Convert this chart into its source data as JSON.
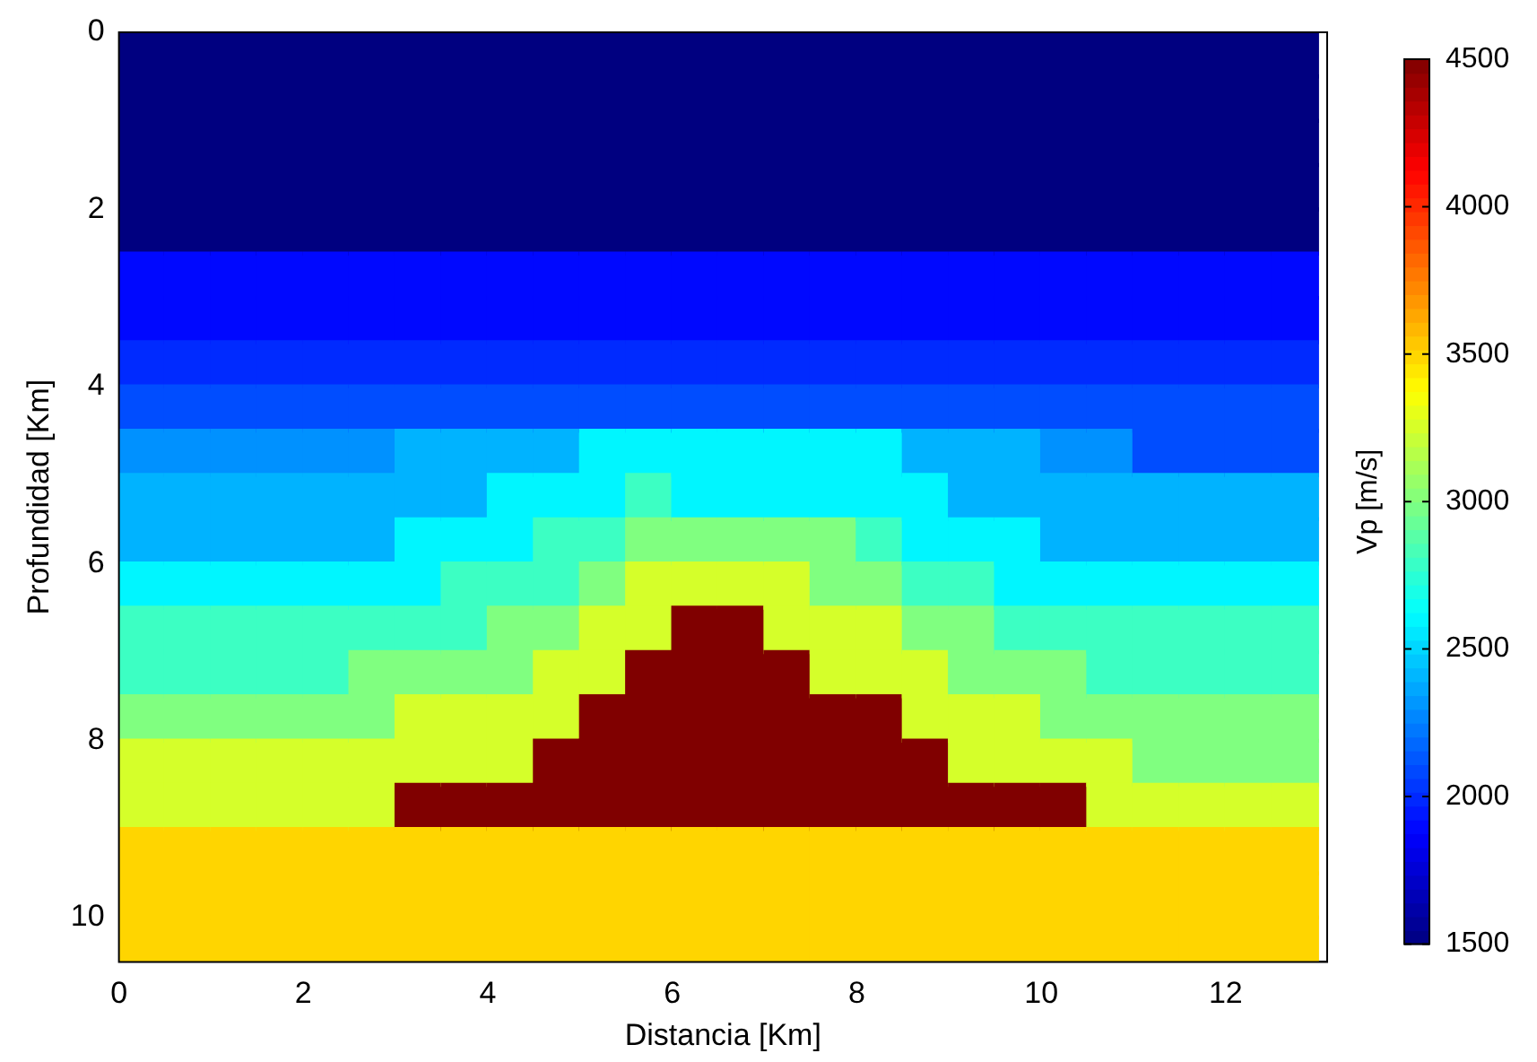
{
  "chart_data": {
    "type": "scatter",
    "xlabel": "Distancia [Km]",
    "ylabel": "Profundidad [Km]",
    "clabel": "Vp [m/s]",
    "marker": "square",
    "grid": false,
    "legend": false,
    "xlim": [
      0,
      13.1
    ],
    "xticks": [
      0,
      2,
      4,
      6,
      8,
      10,
      12
    ],
    "ylim": [
      10.5,
      0
    ],
    "yticks": [
      0,
      2,
      4,
      6,
      8,
      10
    ],
    "clim": [
      1500,
      4500
    ],
    "cticks": [
      1500,
      2000,
      2500,
      3000,
      3500,
      4000,
      4500
    ],
    "x": [
      0.25,
      0.25,
      0.25,
      0.25,
      0.25,
      0.25,
      0.25,
      0.25,
      0.25,
      0.25,
      0.25,
      0.25,
      0.25,
      0.25,
      0.25,
      0.25,
      0.25,
      0.25,
      0.25,
      0.25,
      0.25,
      0.75,
      0.75,
      0.75,
      0.75,
      0.75,
      0.75,
      0.75,
      0.75,
      0.75,
      0.75,
      0.75,
      0.75,
      0.75,
      0.75,
      0.75,
      0.75,
      0.75,
      0.75,
      0.75,
      0.75,
      0.75,
      1.25,
      1.25,
      1.25,
      1.25,
      1.25,
      1.25,
      1.25,
      1.25,
      1.25,
      1.25,
      1.25,
      1.25,
      1.25,
      1.25,
      1.25,
      1.25,
      1.25,
      1.25,
      1.25,
      1.25,
      1.25,
      1.75,
      1.75,
      1.75,
      1.75,
      1.75,
      1.75,
      1.75,
      1.75,
      1.75,
      1.75,
      1.75,
      1.75,
      1.75,
      1.75,
      1.75,
      1.75,
      1.75,
      1.75,
      1.75,
      1.75,
      1.75,
      2.25,
      2.25,
      2.25,
      2.25,
      2.25,
      2.25,
      2.25,
      2.25,
      2.25,
      2.25,
      2.25,
      2.25,
      2.25,
      2.25,
      2.25,
      2.25,
      2.25,
      2.25,
      2.25,
      2.25,
      2.25,
      2.75,
      2.75,
      2.75,
      2.75,
      2.75,
      2.75,
      2.75,
      2.75,
      2.75,
      2.75,
      2.75,
      2.75,
      2.75,
      2.75,
      2.75,
      2.75,
      2.75,
      2.75,
      2.75,
      2.75,
      2.75,
      3.25,
      3.25,
      3.25,
      3.25,
      3.25,
      3.25,
      3.25,
      3.25,
      3.25,
      3.25,
      3.25,
      3.25,
      3.25,
      3.25,
      3.25,
      3.25,
      3.25,
      3.25,
      3.25,
      3.25,
      3.25,
      3.75,
      3.75,
      3.75,
      3.75,
      3.75,
      3.75,
      3.75,
      3.75,
      3.75,
      3.75,
      3.75,
      3.75,
      3.75,
      3.75,
      3.75,
      3.75,
      3.75,
      3.75,
      3.75,
      3.75,
      3.75,
      4.25,
      4.25,
      4.25,
      4.25,
      4.25,
      4.25,
      4.25,
      4.25,
      4.25,
      4.25,
      4.25,
      4.25,
      4.25,
      4.25,
      4.25,
      4.25,
      4.25,
      4.25,
      4.25,
      4.25,
      4.25,
      4.75,
      4.75,
      4.75,
      4.75,
      4.75,
      4.75,
      4.75,
      4.75,
      4.75,
      4.75,
      4.75,
      4.75,
      4.75,
      4.75,
      4.75,
      4.75,
      4.75,
      4.75,
      4.75,
      4.75,
      4.75,
      5.25,
      5.25,
      5.25,
      5.25,
      5.25,
      5.25,
      5.25,
      5.25,
      5.25,
      5.25,
      5.25,
      5.25,
      5.25,
      5.25,
      5.25,
      5.25,
      5.25,
      5.25,
      5.25,
      5.25,
      5.25,
      5.75,
      5.75,
      5.75,
      5.75,
      5.75,
      5.75,
      5.75,
      5.75,
      5.75,
      5.75,
      5.75,
      5.75,
      5.75,
      5.75,
      5.75,
      5.75,
      5.75,
      5.75,
      5.75,
      5.75,
      5.75,
      6.25,
      6.25,
      6.25,
      6.25,
      6.25,
      6.25,
      6.25,
      6.25,
      6.25,
      6.25,
      6.25,
      6.25,
      6.25,
      6.25,
      6.25,
      6.25,
      6.25,
      6.25,
      6.25,
      6.25,
      6.25,
      6.75,
      6.75,
      6.75,
      6.75,
      6.75,
      6.75,
      6.75,
      6.75,
      6.75,
      6.75,
      6.75,
      6.75,
      6.75,
      6.75,
      6.75,
      6.75,
      6.75,
      6.75,
      6.75,
      6.75,
      6.75,
      7.25,
      7.25,
      7.25,
      7.25,
      7.25,
      7.25,
      7.25,
      7.25,
      7.25,
      7.25,
      7.25,
      7.25,
      7.25,
      7.25,
      7.25,
      7.25,
      7.25,
      7.25,
      7.25,
      7.25,
      7.25,
      7.75,
      7.75,
      7.75,
      7.75,
      7.75,
      7.75,
      7.75,
      7.75,
      7.75,
      7.75,
      7.75,
      7.75,
      7.75,
      7.75,
      7.75,
      7.75,
      7.75,
      7.75,
      7.75,
      7.75,
      7.75,
      8.25,
      8.25,
      8.25,
      8.25,
      8.25,
      8.25,
      8.25,
      8.25,
      8.25,
      8.25,
      8.25,
      8.25,
      8.25,
      8.25,
      8.25,
      8.25,
      8.25,
      8.25,
      8.25,
      8.25,
      8.25,
      8.75,
      8.75,
      8.75,
      8.75,
      8.75,
      8.75,
      8.75,
      8.75,
      8.75,
      8.75,
      8.75,
      8.75,
      8.75,
      8.75,
      8.75,
      8.75,
      8.75,
      8.75,
      8.75,
      8.75,
      8.75,
      9.25,
      9.25,
      9.25,
      9.25,
      9.25,
      9.25,
      9.25,
      9.25,
      9.25,
      9.25,
      9.25,
      9.25,
      9.25,
      9.25,
      9.25,
      9.25,
      9.25,
      9.25,
      9.25,
      9.25,
      9.25,
      9.75,
      9.75,
      9.75,
      9.75,
      9.75,
      9.75,
      9.75,
      9.75,
      9.75,
      9.75,
      9.75,
      9.75,
      9.75,
      9.75,
      9.75,
      9.75,
      9.75,
      9.75,
      9.75,
      9.75,
      9.75,
      10.25,
      10.25,
      10.25,
      10.25,
      10.25,
      10.25,
      10.25,
      10.25,
      10.25,
      10.25,
      10.25,
      10.25,
      10.25,
      10.25,
      10.25,
      10.25,
      10.25,
      10.25,
      10.25,
      10.25,
      10.25,
      10.75,
      10.75,
      10.75,
      10.75,
      10.75,
      10.75,
      10.75,
      10.75,
      10.75,
      10.75,
      10.75,
      10.75,
      10.75,
      10.75,
      10.75,
      10.75,
      10.75,
      10.75,
      10.75,
      10.75,
      10.75,
      11.25,
      11.25,
      11.25,
      11.25,
      11.25,
      11.25,
      11.25,
      11.25,
      11.25,
      11.25,
      11.25,
      11.25,
      11.25,
      11.25,
      11.25,
      11.25,
      11.25,
      11.25,
      11.25,
      11.25,
      11.25,
      11.75,
      11.75,
      11.75,
      11.75,
      11.75,
      11.75,
      11.75,
      11.75,
      11.75,
      11.75,
      11.75,
      11.75,
      11.75,
      11.75,
      11.75,
      11.75,
      11.75,
      11.75,
      11.75,
      11.75,
      11.75,
      12.25,
      12.25,
      12.25,
      12.25,
      12.25,
      12.25,
      12.25,
      12.25,
      12.25,
      12.25,
      12.25,
      12.25,
      12.25,
      12.25,
      12.25,
      12.25,
      12.25,
      12.25,
      12.25,
      12.25,
      12.25,
      12.75,
      12.75,
      12.75,
      12.75,
      12.75,
      12.75,
      12.75,
      12.75,
      12.75,
      12.75,
      12.75,
      12.75,
      12.75,
      12.75,
      12.75,
      12.75,
      12.75,
      12.75,
      12.75,
      12.75,
      12.75
    ],
    "values": [
      0.25,
      0.75,
      1.25,
      1.75,
      2.25,
      2.75,
      3.25,
      3.75,
      4.25,
      4.75,
      5.25,
      5.75,
      6.25,
      6.75,
      7.25,
      7.75,
      8.25,
      8.75,
      9.25,
      9.75,
      10.25,
      0.25,
      0.75,
      1.25,
      1.75,
      2.25,
      2.75,
      3.25,
      3.75,
      4.25,
      4.75,
      5.25,
      5.75,
      6.25,
      6.75,
      7.25,
      7.75,
      8.25,
      8.75,
      9.25,
      9.75,
      10.25,
      0.25,
      0.75,
      1.25,
      1.75,
      2.25,
      2.75,
      3.25,
      3.75,
      4.25,
      4.75,
      5.25,
      5.75,
      6.25,
      6.75,
      7.25,
      7.75,
      8.25,
      8.75,
      9.25,
      9.75,
      10.25,
      0.25,
      0.75,
      1.25,
      1.75,
      2.25,
      2.75,
      3.25,
      3.75,
      4.25,
      4.75,
      5.25,
      5.75,
      6.25,
      6.75,
      7.25,
      7.75,
      8.25,
      8.75,
      9.25,
      9.75,
      10.25,
      0.25,
      0.75,
      1.25,
      1.75,
      2.25,
      2.75,
      3.25,
      3.75,
      4.25,
      4.75,
      5.25,
      5.75,
      6.25,
      6.75,
      7.25,
      7.75,
      8.25,
      8.75,
      9.25,
      9.75,
      10.25,
      0.25,
      0.75,
      1.25,
      1.75,
      2.25,
      2.75,
      3.25,
      3.75,
      4.25,
      4.75,
      5.25,
      5.75,
      6.25,
      6.75,
      7.25,
      7.75,
      8.25,
      8.75,
      9.25,
      9.75,
      10.25,
      0.25,
      0.75,
      1.25,
      1.75,
      2.25,
      2.75,
      3.25,
      3.75,
      4.25,
      4.75,
      5.25,
      5.75,
      6.25,
      6.75,
      7.25,
      7.75,
      8.25,
      8.75,
      9.25,
      9.75,
      10.25,
      0.25,
      0.75,
      1.25,
      1.75,
      2.25,
      2.75,
      3.25,
      3.75,
      4.25,
      4.75,
      5.25,
      5.75,
      6.25,
      6.75,
      7.25,
      7.75,
      8.25,
      8.75,
      9.25,
      9.75,
      10.25,
      0.25,
      0.75,
      1.25,
      1.75,
      2.25,
      2.75,
      3.25,
      3.75,
      4.25,
      4.75,
      5.25,
      5.75,
      6.25,
      6.75,
      7.25,
      7.75,
      8.25,
      8.75,
      9.25,
      9.75,
      10.25,
      0.25,
      0.75,
      1.25,
      1.75,
      2.25,
      2.75,
      3.25,
      3.75,
      4.25,
      4.75,
      5.25,
      5.75,
      6.25,
      6.75,
      7.25,
      7.75,
      8.25,
      8.75,
      9.25,
      9.75,
      10.25,
      0.25,
      0.75,
      1.25,
      1.75,
      2.25,
      2.75,
      3.25,
      3.75,
      4.25,
      4.75,
      5.25,
      5.75,
      6.25,
      6.75,
      7.25,
      7.75,
      8.25,
      8.75,
      9.25,
      9.75,
      10.25,
      0.25,
      0.75,
      1.25,
      1.75,
      2.25,
      2.75,
      3.25,
      3.75,
      4.25,
      4.75,
      5.25,
      5.75,
      6.25,
      6.75,
      7.25,
      7.75,
      8.25,
      8.75,
      9.25,
      9.75,
      10.25,
      0.25,
      0.75,
      1.25,
      1.75,
      2.25,
      2.75,
      3.25,
      3.75,
      4.25,
      4.75,
      5.25,
      5.75,
      6.25,
      6.75,
      7.25,
      7.75,
      8.25,
      8.75,
      9.25,
      9.75,
      10.25,
      0.25,
      0.75,
      1.25,
      1.75,
      2.25,
      2.75,
      3.25,
      3.75,
      4.25,
      4.75,
      5.25,
      5.75,
      6.25,
      6.75,
      7.25,
      7.75,
      8.25,
      8.75,
      9.25,
      9.75,
      10.25,
      0.25,
      0.75,
      1.25,
      1.75,
      2.25,
      2.75,
      3.25,
      3.75,
      4.25,
      4.75,
      5.25,
      5.75,
      6.25,
      6.75,
      7.25,
      7.75,
      8.25,
      8.75,
      9.25,
      9.75,
      10.25,
      0.25,
      0.75,
      1.25,
      1.75,
      2.25,
      2.75,
      3.25,
      3.75,
      4.25,
      4.75,
      5.25,
      5.75,
      6.25,
      6.75,
      7.25,
      7.75,
      8.25,
      8.75,
      9.25,
      9.75,
      10.25,
      0.25,
      0.75,
      1.25,
      1.75,
      2.25,
      2.75,
      3.25,
      3.75,
      4.25,
      4.75,
      5.25,
      5.75,
      6.25,
      6.75,
      7.25,
      7.75,
      8.25,
      8.75,
      9.25,
      9.75,
      10.25,
      0.25,
      0.75,
      1.25,
      1.75,
      2.25,
      2.75,
      3.25,
      3.75,
      4.25,
      4.75,
      5.25,
      5.75,
      6.25,
      6.75,
      7.25,
      7.75,
      8.25,
      8.75,
      9.25,
      9.75,
      10.25,
      0.25,
      0.75,
      1.25,
      1.75,
      2.25,
      2.75,
      3.25,
      3.75,
      4.25,
      4.75,
      5.25,
      5.75,
      6.25,
      6.75,
      7.25,
      7.75,
      8.25,
      8.75,
      9.25,
      9.75,
      10.25,
      0.25,
      0.75,
      1.25,
      1.75,
      2.25,
      2.75,
      3.25,
      3.75,
      4.25,
      4.75,
      5.25,
      5.75,
      6.25,
      6.75,
      7.25,
      7.75,
      8.25,
      8.75,
      9.25,
      9.75,
      10.25,
      0.25,
      0.75,
      1.25,
      1.75,
      2.25,
      2.75,
      3.25,
      3.75,
      4.25,
      4.75,
      5.25,
      5.75,
      6.25,
      6.75,
      7.25,
      7.75,
      8.25,
      8.75,
      9.25,
      9.75,
      10.25,
      0.25,
      0.75,
      1.25,
      1.75,
      2.25,
      2.75,
      3.25,
      3.75,
      4.25,
      4.75,
      5.25,
      5.75,
      6.25,
      6.75,
      7.25,
      7.75,
      8.25,
      8.75,
      9.25,
      9.75,
      10.25,
      0.25,
      0.75,
      1.25,
      1.75,
      2.25,
      2.75,
      3.25,
      3.75,
      4.25,
      4.75,
      5.25,
      5.75,
      6.25,
      6.75,
      7.25,
      7.75,
      8.25,
      8.75,
      9.25,
      9.75,
      10.25,
      0.25,
      0.75,
      1.25,
      1.75,
      2.25,
      2.75,
      3.25,
      3.75,
      4.25,
      4.75,
      5.25,
      5.75,
      6.25,
      6.75,
      7.25,
      7.75,
      8.25,
      8.75,
      9.25,
      9.75,
      10.25,
      0.25,
      0.75,
      1.25,
      1.75,
      2.25,
      2.75,
      3.25,
      3.75,
      4.25,
      4.75,
      5.25,
      5.75,
      6.25,
      6.75,
      7.25,
      7.75,
      8.25,
      8.75,
      9.25,
      9.75,
      10.25,
      0.25,
      0.75,
      1.25,
      1.75,
      2.25,
      2.75,
      3.25,
      3.75,
      4.25,
      4.75,
      5.25,
      5.75,
      6.25,
      6.75,
      7.25,
      7.75,
      8.25,
      8.75,
      9.25,
      9.75,
      10.25
    ],
    "cvalues": [
      1500,
      1500,
      1500,
      1500,
      1500,
      1900,
      1900,
      2000,
      2100,
      2300,
      2400,
      2400,
      2600,
      2800,
      2800,
      3000,
      3250,
      3250,
      3500,
      3500,
      3500,
      1500,
      1500,
      1500,
      1500,
      1500,
      1900,
      1900,
      2000,
      2100,
      2300,
      2400,
      2400,
      2600,
      2800,
      2800,
      3000,
      3250,
      3250,
      3500,
      3500,
      3500,
      1500,
      1500,
      1500,
      1500,
      1500,
      1900,
      1900,
      2000,
      2100,
      2300,
      2400,
      2400,
      2600,
      2800,
      2800,
      3000,
      3250,
      3250,
      3500,
      3500,
      3500,
      1500,
      1500,
      1500,
      1500,
      1500,
      1900,
      1900,
      2000,
      2100,
      2300,
      2400,
      2400,
      2600,
      2800,
      2800,
      3000,
      3250,
      3250,
      3500,
      3500,
      3500,
      1500,
      1500,
      1500,
      1500,
      1500,
      1900,
      1900,
      2000,
      2100,
      2300,
      2400,
      2400,
      2600,
      2800,
      2800,
      3000,
      3250,
      3250,
      3500,
      3500,
      3500,
      1500,
      1500,
      1500,
      1500,
      1500,
      1900,
      1900,
      2000,
      2100,
      2300,
      2400,
      2400,
      2600,
      2800,
      3000,
      3000,
      3250,
      3250,
      3500,
      3500,
      3500,
      1500,
      1500,
      1500,
      1500,
      1500,
      1900,
      1900,
      2000,
      2100,
      2400,
      2400,
      2600,
      2600,
      2800,
      3000,
      3250,
      3250,
      4500,
      3500,
      3500,
      3500,
      1500,
      1500,
      1500,
      1500,
      1500,
      1900,
      1900,
      2000,
      2100,
      2400,
      2400,
      2600,
      2800,
      2800,
      3000,
      3250,
      3250,
      4500,
      3500,
      3500,
      3500,
      1500,
      1500,
      1500,
      1500,
      1500,
      1900,
      1900,
      2000,
      2100,
      2400,
      2600,
      2600,
      2800,
      3000,
      3000,
      3250,
      3250,
      4500,
      3500,
      3500,
      3500,
      1500,
      1500,
      1500,
      1500,
      1500,
      1900,
      1900,
      2000,
      2100,
      2400,
      2600,
      2800,
      2800,
      3000,
      3250,
      3250,
      4500,
      4500,
      3500,
      3500,
      3500,
      1500,
      1500,
      1500,
      1500,
      1500,
      1900,
      1900,
      2000,
      2100,
      2600,
      2600,
      2800,
      3000,
      3250,
      3250,
      4500,
      4500,
      4500,
      3500,
      3500,
      3500,
      1500,
      1500,
      1500,
      1500,
      1500,
      1900,
      1900,
      2000,
      2100,
      2600,
      2800,
      3000,
      3250,
      3250,
      4500,
      4500,
      4500,
      4500,
      3500,
      3500,
      3500,
      1500,
      1500,
      1500,
      1500,
      1500,
      1900,
      1900,
      2000,
      2100,
      2600,
      2600,
      3000,
      3250,
      4500,
      4500,
      4500,
      4500,
      4500,
      3500,
      3500,
      3500,
      1500,
      1500,
      1500,
      1500,
      1500,
      1900,
      1900,
      2000,
      2100,
      2600,
      2600,
      3000,
      3250,
      4500,
      4500,
      4500,
      4500,
      4500,
      3500,
      3500,
      3500,
      1500,
      1500,
      1500,
      1500,
      1500,
      1900,
      1900,
      2000,
      2100,
      2600,
      2600,
      3000,
      3250,
      3250,
      4500,
      4500,
      4500,
      4500,
      3500,
      3500,
      3500,
      1500,
      1500,
      1500,
      1500,
      1500,
      1900,
      1900,
      2000,
      2100,
      2600,
      2600,
      3000,
      3000,
      3250,
      3250,
      4500,
      4500,
      4500,
      3500,
      3500,
      3500,
      1500,
      1500,
      1500,
      1500,
      1500,
      1900,
      1900,
      2000,
      2100,
      2600,
      2600,
      2800,
      3000,
      3250,
      3250,
      4500,
      4500,
      4500,
      3500,
      3500,
      3500,
      1500,
      1500,
      1500,
      1500,
      1500,
      1900,
      1900,
      2000,
      2100,
      2400,
      2600,
      2600,
      2800,
      3000,
      3250,
      3250,
      4500,
      4500,
      3500,
      3500,
      3500,
      1500,
      1500,
      1500,
      1500,
      1500,
      1900,
      1900,
      2000,
      2100,
      2400,
      2400,
      2600,
      2800,
      3000,
      3000,
      3250,
      3250,
      4500,
      3500,
      3500,
      3500,
      1500,
      1500,
      1500,
      1500,
      1500,
      1900,
      1900,
      2000,
      2100,
      2400,
      2400,
      2600,
      2600,
      2800,
      3000,
      3250,
      3250,
      4500,
      3500,
      3500,
      3500,
      1500,
      1500,
      1500,
      1500,
      1500,
      1900,
      1900,
      2000,
      2100,
      2300,
      2400,
      2400,
      2600,
      2800,
      3000,
      3000,
      3250,
      4500,
      3500,
      3500,
      3500,
      1500,
      1500,
      1500,
      1500,
      1500,
      1900,
      1900,
      2000,
      2100,
      2300,
      2400,
      2400,
      2600,
      2800,
      2800,
      3000,
      3250,
      3250,
      3500,
      3500,
      3500,
      1500,
      1500,
      1500,
      1500,
      1500,
      1900,
      1900,
      2000,
      2100,
      2100,
      2400,
      2400,
      2600,
      2800,
      2800,
      3000,
      3000,
      3250,
      3500,
      3500,
      3500,
      1500,
      1500,
      1500,
      1500,
      1500,
      1900,
      1900,
      2000,
      2100,
      2100,
      2400,
      2400,
      2600,
      2800,
      2800,
      3000,
      3000,
      3250,
      3500,
      3500,
      3500,
      1500,
      1500,
      1500,
      1500,
      1500,
      1900,
      1900,
      2000,
      2100,
      2100,
      2400,
      2400,
      2600,
      2800,
      2800,
      3000,
      3000,
      3250,
      3500,
      3500,
      3500,
      1500,
      1500,
      1500,
      1500,
      1500,
      1900,
      1900,
      2000,
      2100,
      2100,
      2400,
      2400,
      2600,
      2800,
      2800,
      3000,
      3000,
      3250,
      3500,
      3500,
      3500
    ]
  }
}
